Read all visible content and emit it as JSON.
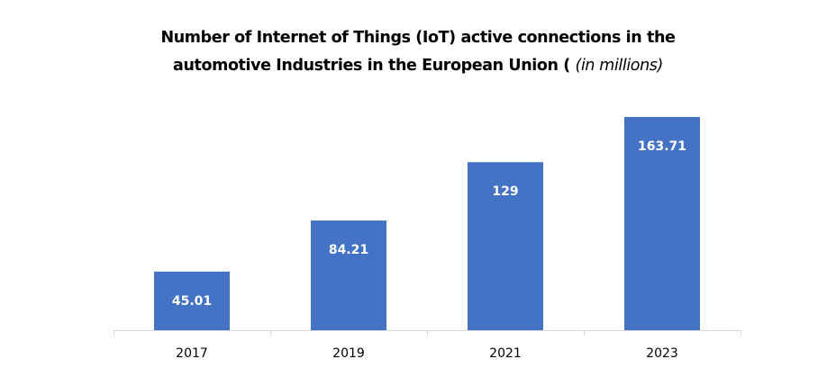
{
  "chart_data": {
    "type": "bar",
    "title_main": "Number of Internet of Things (IoT) active connections in the automotive Industries in the European Union (",
    "title_line1": "Number of Internet of Things (IoT) active connections in the",
    "title_line2": "automotive Industries in the European Union (",
    "title_unit": "(in millions)",
    "categories": [
      "2017",
      "2019",
      "2021",
      "2023"
    ],
    "values": [
      45.01,
      84.21,
      129,
      163.71
    ],
    "data_labels": [
      "45.01",
      "84.21",
      "129",
      "163.71"
    ],
    "xlabel": "",
    "ylabel": "",
    "ylim": [
      0,
      180
    ],
    "grid": false,
    "legend": "none",
    "bar_color": "#4472C4",
    "label_color": "#FFFFFF",
    "axis_color": "#D9D9D9"
  }
}
